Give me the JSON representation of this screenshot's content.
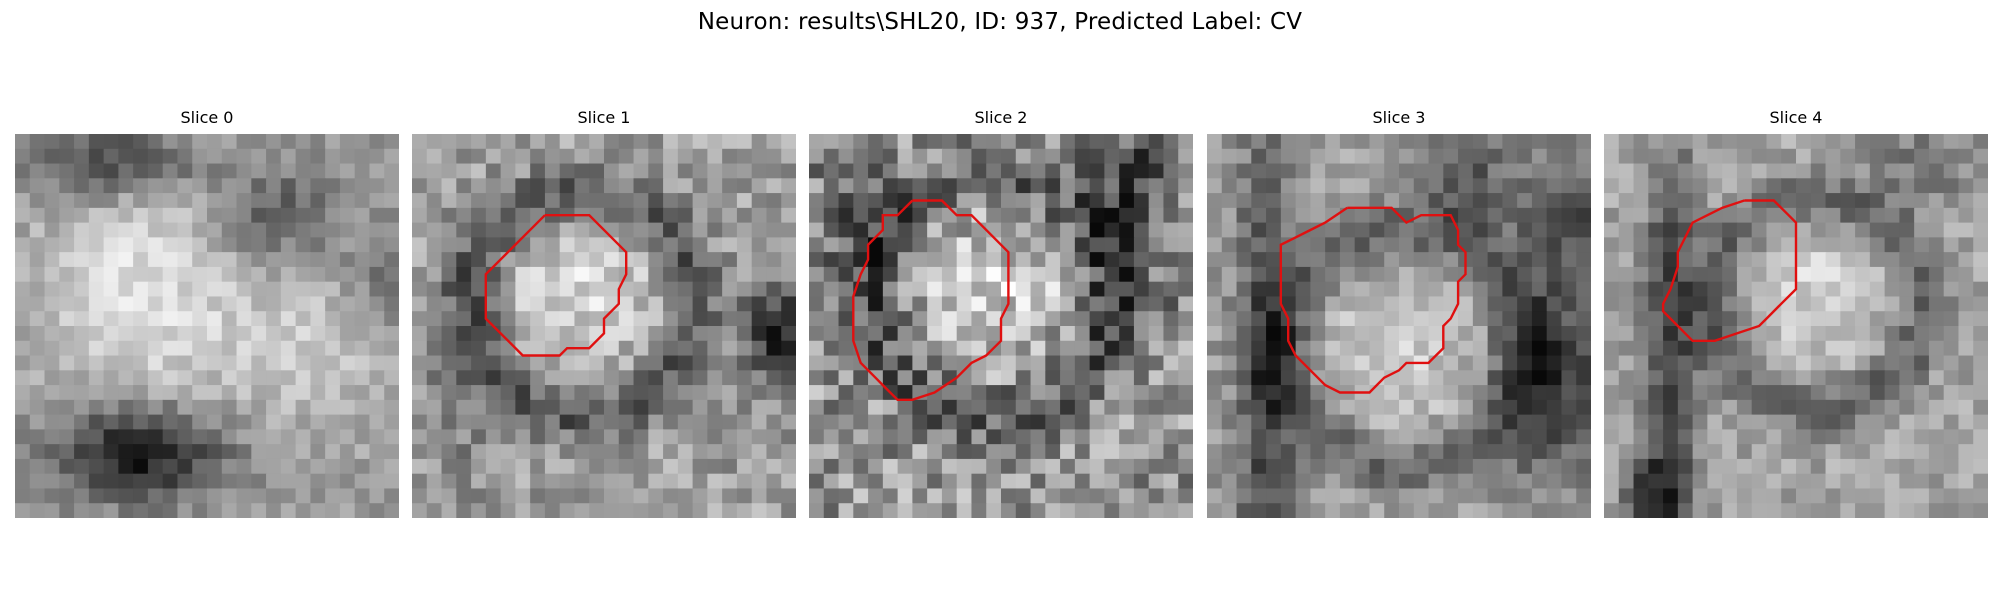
{
  "figure": {
    "title": "Neuron: results\\SHL20, ID: 937, Predicted Label: CV"
  },
  "panels": [
    {
      "title": "Slice 0",
      "has_contour": false
    },
    {
      "title": "Slice 1",
      "has_contour": true
    },
    {
      "title": "Slice 2",
      "has_contour": true
    },
    {
      "title": "Slice 3",
      "has_contour": true
    },
    {
      "title": "Slice 4",
      "has_contour": true
    }
  ],
  "colors": {
    "contour": "#e01010",
    "background": "#ffffff"
  },
  "image": {
    "colormap": "grayscale"
  }
}
